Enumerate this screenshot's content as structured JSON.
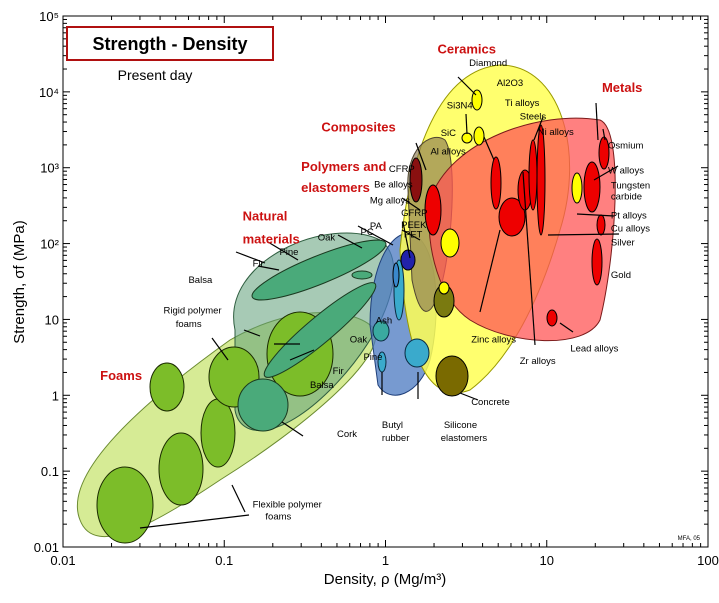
{
  "chart_data": {
    "type": "scatter",
    "title": "Strength - Density",
    "subtitle": "Present day",
    "credit": "MFA, 05",
    "xlabel": "Density, ρ  (Mg/m³)",
    "ylabel": "Strength, σf (MPa)",
    "xscale": "log",
    "yscale": "log",
    "xlim": [
      0.01,
      100
    ],
    "ylim": [
      0.01,
      100000
    ],
    "x_ticks": [
      "0.01",
      "0.1",
      "1",
      "10",
      "100"
    ],
    "y_ticks": [
      "0.01",
      "0.1",
      "1",
      "10",
      "10²",
      "10³",
      "10⁴",
      "10⁵"
    ],
    "x_tick_values": [
      0.01,
      0.1,
      1,
      10,
      100
    ],
    "y_tick_values": [
      0.01,
      0.1,
      1,
      10,
      100,
      1000,
      10000,
      100000
    ],
    "families": [
      {
        "name": "Foams",
        "color": "#c9e27a"
      },
      {
        "name": "Natural materials",
        "color": "#5a9e6e"
      },
      {
        "name": "Polymers and elastomers",
        "color": "#4a78c0"
      },
      {
        "name": "Composites",
        "color": "#9a8a60"
      },
      {
        "name": "Ceramics",
        "color": "#ffff66"
      },
      {
        "name": "Metals",
        "color": "#f05050"
      }
    ],
    "family_labels": [
      {
        "text": "Ceramics",
        "x": 2.1,
        "y": 32000
      },
      {
        "text": "Metals",
        "x": 22,
        "y": 10000
      },
      {
        "text": "Composites",
        "x": 0.4,
        "y": 3000
      },
      {
        "text": "Polymers and",
        "x": 0.3,
        "y": 900
      },
      {
        "text": "elastomers",
        "x": 0.3,
        "y": 480
      },
      {
        "text": "Natural",
        "x": 0.13,
        "y": 200
      },
      {
        "text": "materials",
        "x": 0.13,
        "y": 100
      },
      {
        "text": "Foams",
        "x": 0.017,
        "y": 1.6
      }
    ],
    "material_labels": [
      {
        "text": "Diamond",
        "x": 3.3,
        "y": 22000
      },
      {
        "text": "Al2O3",
        "x": 4.9,
        "y": 12000
      },
      {
        "text": "Si3N4",
        "x": 2.4,
        "y": 6000
      },
      {
        "text": "Ti alloys",
        "x": 5.5,
        "y": 6500
      },
      {
        "text": "Steels",
        "x": 6.8,
        "y": 4300
      },
      {
        "text": "Ni alloys",
        "x": 8.8,
        "y": 2700
      },
      {
        "text": "SiC",
        "x": 2.2,
        "y": 2600
      },
      {
        "text": "Osmium",
        "x": 24,
        "y": 1800
      },
      {
        "text": "Al alloys",
        "x": 1.9,
        "y": 1500
      },
      {
        "text": "CFRP",
        "x": 1.05,
        "y": 880
      },
      {
        "text": "W alloys",
        "x": 24,
        "y": 840
      },
      {
        "text": "Be alloys",
        "x": 0.85,
        "y": 550
      },
      {
        "text": "Tungsten",
        "x": 25,
        "y": 530
      },
      {
        "text": "carbide",
        "x": 25,
        "y": 380
      },
      {
        "text": "Mg alloys",
        "x": 0.8,
        "y": 340
      },
      {
        "text": "GFRP",
        "x": 1.25,
        "y": 230
      },
      {
        "text": "Pt alloys",
        "x": 25,
        "y": 215
      },
      {
        "text": "PEEK",
        "x": 1.25,
        "y": 160
      },
      {
        "text": "Cu alloys",
        "x": 25,
        "y": 145
      },
      {
        "text": "PC",
        "x": 0.7,
        "y": 130
      },
      {
        "text": "PA",
        "x": 0.8,
        "y": 155
      },
      {
        "text": "PET",
        "x": 1.3,
        "y": 120
      },
      {
        "text": "Oak",
        "x": 0.38,
        "y": 110
      },
      {
        "text": "Silver",
        "x": 25,
        "y": 95
      },
      {
        "text": "Pine",
        "x": 0.22,
        "y": 71
      },
      {
        "text": "Fir",
        "x": 0.15,
        "y": 50
      },
      {
        "text": "Balsa",
        "x": 0.06,
        "y": 30
      },
      {
        "text": "Gold",
        "x": 25,
        "y": 35
      },
      {
        "text": "Ash",
        "x": 0.87,
        "y": 8.8
      },
      {
        "text": "Rigid polymer",
        "x": 0.042,
        "y": 12
      },
      {
        "text": "foams",
        "x": 0.05,
        "y": 8
      },
      {
        "text": "Oak",
        "x": 0.6,
        "y": 5
      },
      {
        "text": "Zinc alloys",
        "x": 3.4,
        "y": 5
      },
      {
        "text": "Lead alloys",
        "x": 14,
        "y": 3.8
      },
      {
        "text": "Fir",
        "x": 0.47,
        "y": 1.9
      },
      {
        "text": "Pine",
        "x": 0.73,
        "y": 2.9
      },
      {
        "text": "Zr alloys",
        "x": 6.8,
        "y": 2.6
      },
      {
        "text": "Balsa",
        "x": 0.34,
        "y": 1.25
      },
      {
        "text": "Concrete",
        "x": 3.4,
        "y": 0.75
      },
      {
        "text": "Butyl",
        "x": 0.95,
        "y": 0.37
      },
      {
        "text": "rubber",
        "x": 0.95,
        "y": 0.25
      },
      {
        "text": "Silicone",
        "x": 2.3,
        "y": 0.37
      },
      {
        "text": "elastomers",
        "x": 2.2,
        "y": 0.25
      },
      {
        "text": "Cork",
        "x": 0.5,
        "y": 0.28
      },
      {
        "text": "Flexible polymer",
        "x": 0.15,
        "y": 0.033
      },
      {
        "text": "foams",
        "x": 0.18,
        "y": 0.023
      }
    ]
  }
}
